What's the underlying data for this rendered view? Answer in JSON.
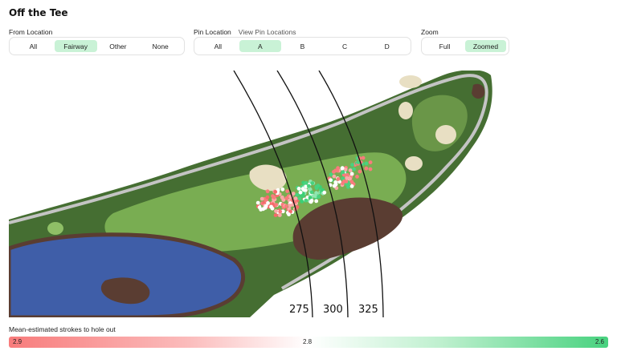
{
  "title": "Off the Tee",
  "from_location": {
    "label": "From Location",
    "options": [
      "All",
      "Fairway",
      "Other",
      "None"
    ],
    "selected": "Fairway"
  },
  "pin_location": {
    "label": "Pin Location",
    "link": "View Pin Locations",
    "options": [
      "All",
      "A",
      "B",
      "C",
      "D"
    ],
    "selected": "A"
  },
  "zoom": {
    "label": "Zoom",
    "options": [
      "Full",
      "Zoomed"
    ],
    "selected": "Zoomed"
  },
  "distance_arcs": [
    "275",
    "300",
    "325"
  ],
  "legend": {
    "label": "Mean-estimated strokes to hole out",
    "min": "2.9",
    "mid": "2.8",
    "max": "2.6"
  },
  "colors": {
    "fairway": "#79ad52",
    "rough": "#456e32",
    "bunker": "#e8dfc3",
    "water": "#3f5ea8",
    "dirt": "#5a3d32",
    "path": "#bfbfbf",
    "active_button": "#c9f2d6",
    "high_strokes": "#f87c7c",
    "low_strokes": "#48d27f"
  }
}
